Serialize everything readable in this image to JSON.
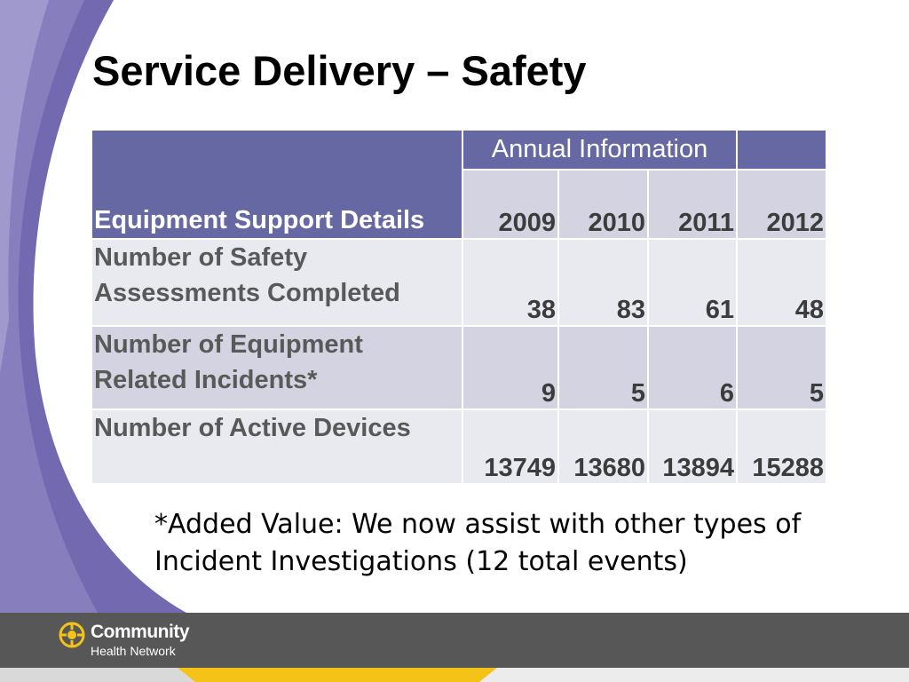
{
  "slide": {
    "title": "Service Delivery – Safety",
    "footnote": "*Added Value: We now assist with other types of Incident Investigations (12 total events)"
  },
  "table": {
    "corner_header": "Equipment Support Details",
    "group_header": "Annual Information",
    "years": [
      "2009",
      "2010",
      "2011",
      "2012"
    ],
    "rows": [
      {
        "label": "Number of Safety Assessments Completed",
        "values": [
          "38",
          "83",
          "61",
          "48"
        ]
      },
      {
        "label": "Number of Equipment Related Incidents*",
        "values": [
          "9",
          "5",
          "6",
          "5"
        ]
      },
      {
        "label": "Number of Active Devices",
        "values": [
          "13749",
          "13680",
          "13894",
          "15288"
        ]
      }
    ]
  },
  "logo": {
    "name": "Community",
    "subtitle": "Health Network"
  },
  "colors": {
    "header_purple": "#6668a4",
    "cell_light": "#e9e9f0",
    "cell_mid": "#d3d3e1",
    "footer_gray": "#575757",
    "accent_yellow": "#f5c318"
  }
}
